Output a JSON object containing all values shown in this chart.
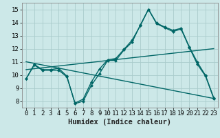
{
  "xlabel": "Humidex (Indice chaleur)",
  "bg_color": "#cce8e8",
  "grid_color": "#aacccc",
  "line_color": "#006666",
  "xlim": [
    -0.5,
    23.5
  ],
  "ylim": [
    7.5,
    15.5
  ],
  "xticks": [
    0,
    1,
    2,
    3,
    4,
    5,
    6,
    7,
    8,
    9,
    10,
    11,
    12,
    13,
    14,
    15,
    16,
    17,
    18,
    19,
    20,
    21,
    22,
    23
  ],
  "yticks": [
    8,
    9,
    10,
    11,
    12,
    13,
    14,
    15
  ],
  "line1_x": [
    0,
    1,
    2,
    3,
    4,
    5,
    6,
    7,
    8,
    9,
    10,
    11,
    12,
    13,
    14,
    15,
    16,
    17,
    18,
    19,
    20,
    21,
    22,
    23
  ],
  "line1_y": [
    9.7,
    10.8,
    10.4,
    10.4,
    10.5,
    9.9,
    7.8,
    8.0,
    9.2,
    10.1,
    11.1,
    11.1,
    11.9,
    12.5,
    13.8,
    15.0,
    13.9,
    13.6,
    13.3,
    13.5,
    12.1,
    10.8,
    9.9,
    8.2
  ],
  "line2_x": [
    0,
    1,
    2,
    3,
    4,
    5,
    6,
    7,
    8,
    9,
    10,
    11,
    12,
    13,
    14,
    15,
    16,
    17,
    18,
    19,
    20,
    21,
    22,
    23
  ],
  "line2_y": [
    9.7,
    10.75,
    10.35,
    10.35,
    10.35,
    9.85,
    7.85,
    8.15,
    9.45,
    10.45,
    11.15,
    11.25,
    11.95,
    12.65,
    13.75,
    15.0,
    13.95,
    13.65,
    13.4,
    13.55,
    12.15,
    10.95,
    9.95,
    8.25
  ],
  "line3_x": [
    0,
    23
  ],
  "line3_y": [
    10.4,
    12.0
  ],
  "line4_x": [
    0,
    23
  ],
  "line4_y": [
    11.0,
    8.2
  ],
  "marker_size": 2.5,
  "linewidth": 1.0,
  "xlabel_fontsize": 7.5,
  "tick_fontsize": 6.5
}
